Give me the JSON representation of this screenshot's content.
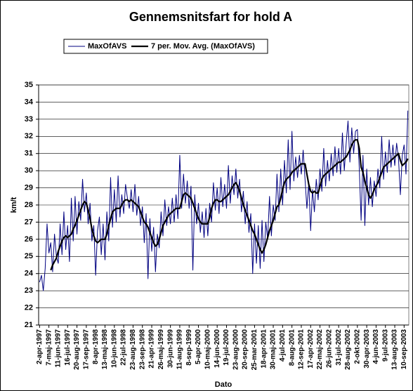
{
  "chart_data": {
    "type": "line",
    "title": "Gennemsnitsfart for hold A",
    "x_label": "Dato",
    "y_label": "km/t",
    "categories": [
      "2-apr-1997",
      null,
      null,
      null,
      null,
      "7-maj-1997",
      null,
      null,
      null,
      null,
      "11-jun-1997",
      null,
      null,
      null,
      null,
      "16-jul-1997",
      null,
      null,
      null,
      null,
      "20-aug-1997",
      null,
      null,
      null,
      null,
      "17-sep-1997",
      null,
      null,
      null,
      null,
      "8-apr-1998",
      null,
      null,
      null,
      null,
      "13-maj-1998",
      null,
      null,
      null,
      null,
      "10-jun-1998",
      null,
      null,
      null,
      null,
      "22-jul-1998",
      null,
      null,
      null,
      null,
      "23-aug-1998",
      null,
      null,
      null,
      null,
      "23-sep-1998",
      null,
      null,
      null,
      null,
      "21-apr-1999",
      null,
      null,
      null,
      null,
      "26-maj-1999",
      null,
      null,
      null,
      null,
      "30-jun-1999",
      null,
      null,
      null,
      null,
      "11-aug-1999",
      null,
      null,
      null,
      null,
      "8-sep-1999",
      null,
      null,
      null,
      null,
      "5-apr-2000",
      null,
      null,
      null,
      null,
      "10-maj-2000",
      null,
      null,
      null,
      null,
      "14-jun-2000",
      null,
      null,
      null,
      null,
      "19-jul-2000",
      null,
      null,
      null,
      null,
      "23-aug-2000",
      null,
      null,
      null,
      null,
      "20-sep-2000",
      null,
      null,
      null,
      null,
      "25-mar-2001",
      null,
      null,
      null,
      null,
      "18-apr-2001",
      null,
      null,
      null,
      null,
      "30-maj-2001",
      null,
      null,
      null,
      null,
      "4-jul-2001",
      null,
      null,
      null,
      null,
      "8-aug-2001",
      null,
      null,
      null,
      null,
      "12-sep-2001",
      null,
      null,
      null,
      null,
      "17-apr-2002",
      null,
      null,
      null,
      null,
      "22-maj-2002",
      null,
      null,
      null,
      null,
      "26-jun-2002",
      null,
      null,
      null,
      null,
      "31-jul-2002",
      null,
      null,
      null,
      null,
      "28-aug-2002",
      null,
      null,
      null,
      null,
      "2-okt-2002",
      null,
      null,
      null,
      null,
      "30-apr-2003",
      null,
      null,
      null,
      null,
      "4-jun-2003",
      null,
      null,
      null,
      null,
      "9-jul-2003",
      null,
      null,
      null,
      null,
      "13-aug-2003",
      null,
      null,
      null,
      null,
      "10-sep-2003",
      null,
      null
    ],
    "series": [
      {
        "name": "MaxOfAVS",
        "color": "#000080",
        "width": 1,
        "values": [
          23.5,
          23.9,
          23.0,
          24.3,
          26.9,
          25.2,
          25.8,
          24.1,
          26.3,
          25.0,
          24.6,
          26.9,
          25.1,
          27.6,
          25.4,
          26.8,
          24.7,
          28.4,
          25.9,
          28.5,
          26.3,
          28.2,
          27.1,
          29.5,
          27.6,
          28.7,
          26.9,
          28.1,
          25.9,
          26.8,
          23.9,
          26.5,
          27.3,
          25.1,
          26.9,
          24.8,
          27.6,
          25.9,
          29.6,
          26.7,
          28.9,
          27.0,
          29.7,
          27.3,
          28.6,
          27.5,
          29.2,
          28.4,
          27.8,
          28.9,
          27.6,
          29.2,
          27.4,
          28.5,
          26.8,
          27.9,
          25.8,
          27.5,
          23.7,
          27.2,
          25.3,
          26.7,
          24.1,
          26.3,
          25.5,
          27.6,
          26.2,
          28.3,
          26.8,
          27.9,
          26.9,
          28.4,
          27.0,
          28.6,
          27.2,
          30.9,
          27.8,
          29.8,
          28.1,
          29.4,
          27.8,
          29.1,
          24.2,
          28.6,
          26.9,
          28.1,
          26.4,
          27.6,
          26.1,
          27.8,
          26.2,
          28.1,
          27.0,
          29.3,
          27.7,
          29.0,
          27.5,
          29.6,
          27.9,
          29.2,
          27.8,
          30.3,
          28.1,
          29.7,
          28.6,
          30.1,
          28.4,
          29.5,
          27.6,
          28.8,
          26.9,
          28.2,
          26.4,
          27.5,
          24.0,
          26.9,
          24.6,
          26.8,
          24.3,
          27.1,
          24.7,
          27.0,
          26.0,
          28.5,
          26.2,
          28.0,
          27.1,
          29.8,
          27.6,
          30.1,
          28.0,
          30.6,
          28.7,
          31.8,
          28.9,
          32.3,
          29.4,
          30.8,
          29.6,
          30.9,
          29.8,
          31.2,
          29.5,
          27.8,
          29.3,
          26.5,
          28.9,
          27.6,
          29.5,
          28.3,
          30.1,
          28.8,
          31.3,
          29.1,
          30.6,
          29.4,
          31.0,
          29.7,
          31.4,
          29.9,
          31.3,
          29.8,
          32.2,
          30.0,
          31.6,
          32.9,
          30.5,
          32.5,
          31.0,
          32.3,
          32.4,
          30.2,
          27.1,
          30.9,
          26.8,
          30.1,
          28.0,
          29.6,
          27.9,
          29.4,
          28.5,
          30.1,
          29.0,
          32.0,
          29.5,
          31.1,
          29.9,
          31.8,
          30.2,
          31.5,
          30.3,
          31.6,
          30.7,
          28.6,
          30.9,
          31.5,
          29.8,
          33.5
        ]
      },
      {
        "name": "7 per. Mov. Avg. (MaxOfAVS)",
        "color": "#000000",
        "width": 2.2,
        "values": [
          null,
          null,
          null,
          null,
          null,
          null,
          24.2,
          24.5,
          24.7,
          24.9,
          25.3,
          25.6,
          25.9,
          26.1,
          26.2,
          26.1,
          26.2,
          26.3,
          26.6,
          26.8,
          27.1,
          27.4,
          27.7,
          28.0,
          28.2,
          28.1,
          27.7,
          27.2,
          26.6,
          26.2,
          25.9,
          25.8,
          25.9,
          26.0,
          26.0,
          26.0,
          26.3,
          26.8,
          27.2,
          27.6,
          27.7,
          27.8,
          27.8,
          27.8,
          28.0,
          28.2,
          28.3,
          28.3,
          28.2,
          28.3,
          28.2,
          28.1,
          28.0,
          27.9,
          27.6,
          27.3,
          27.0,
          26.9,
          26.7,
          26.4,
          26.1,
          25.8,
          25.6,
          25.7,
          26.0,
          26.4,
          26.8,
          27.0,
          27.2,
          27.4,
          27.5,
          27.6,
          27.7,
          27.8,
          27.8,
          27.8,
          28.2,
          28.6,
          28.7,
          28.6,
          28.5,
          28.4,
          28.1,
          27.8,
          27.5,
          27.2,
          27.0,
          26.9,
          26.9,
          26.9,
          26.9,
          27.3,
          27.8,
          28.1,
          28.3,
          28.3,
          28.2,
          28.2,
          28.3,
          28.4,
          28.5,
          28.6,
          28.8,
          29.0,
          29.2,
          29.3,
          29.1,
          28.8,
          28.4,
          28.0,
          27.7,
          27.4,
          27.1,
          26.8,
          26.5,
          26.3,
          26.0,
          25.7,
          25.4,
          25.2,
          25.4,
          25.7,
          26.1,
          26.5,
          26.8,
          27.1,
          27.5,
          27.9,
          28.0,
          28.4,
          28.9,
          29.3,
          29.5,
          29.6,
          29.7,
          29.9,
          30.0,
          30.1,
          30.2,
          30.3,
          30.4,
          30.4,
          30.4,
          29.8,
          29.2,
          28.8,
          28.7,
          28.8,
          28.7,
          28.7,
          29.1,
          29.5,
          29.7,
          29.8,
          29.9,
          30.0,
          30.1,
          30.2,
          30.3,
          30.4,
          30.5,
          30.5,
          30.6,
          30.7,
          30.8,
          31.0,
          31.2,
          31.5,
          31.7,
          31.8,
          31.8,
          31.3,
          30.2,
          29.9,
          29.4,
          29.0,
          28.6,
          28.4,
          28.6,
          28.9,
          29.1,
          29.3,
          29.6,
          29.9,
          30.2,
          30.3,
          30.4,
          30.5,
          30.6,
          30.7,
          30.8,
          30.9,
          31.0,
          30.6,
          30.3,
          30.4,
          30.5,
          30.7
        ]
      }
    ],
    "ylim": [
      21,
      35
    ],
    "yticks": [
      21,
      22,
      23,
      24,
      25,
      26,
      27,
      28,
      29,
      30,
      31,
      32,
      33,
      34,
      35
    ],
    "grid": true
  }
}
